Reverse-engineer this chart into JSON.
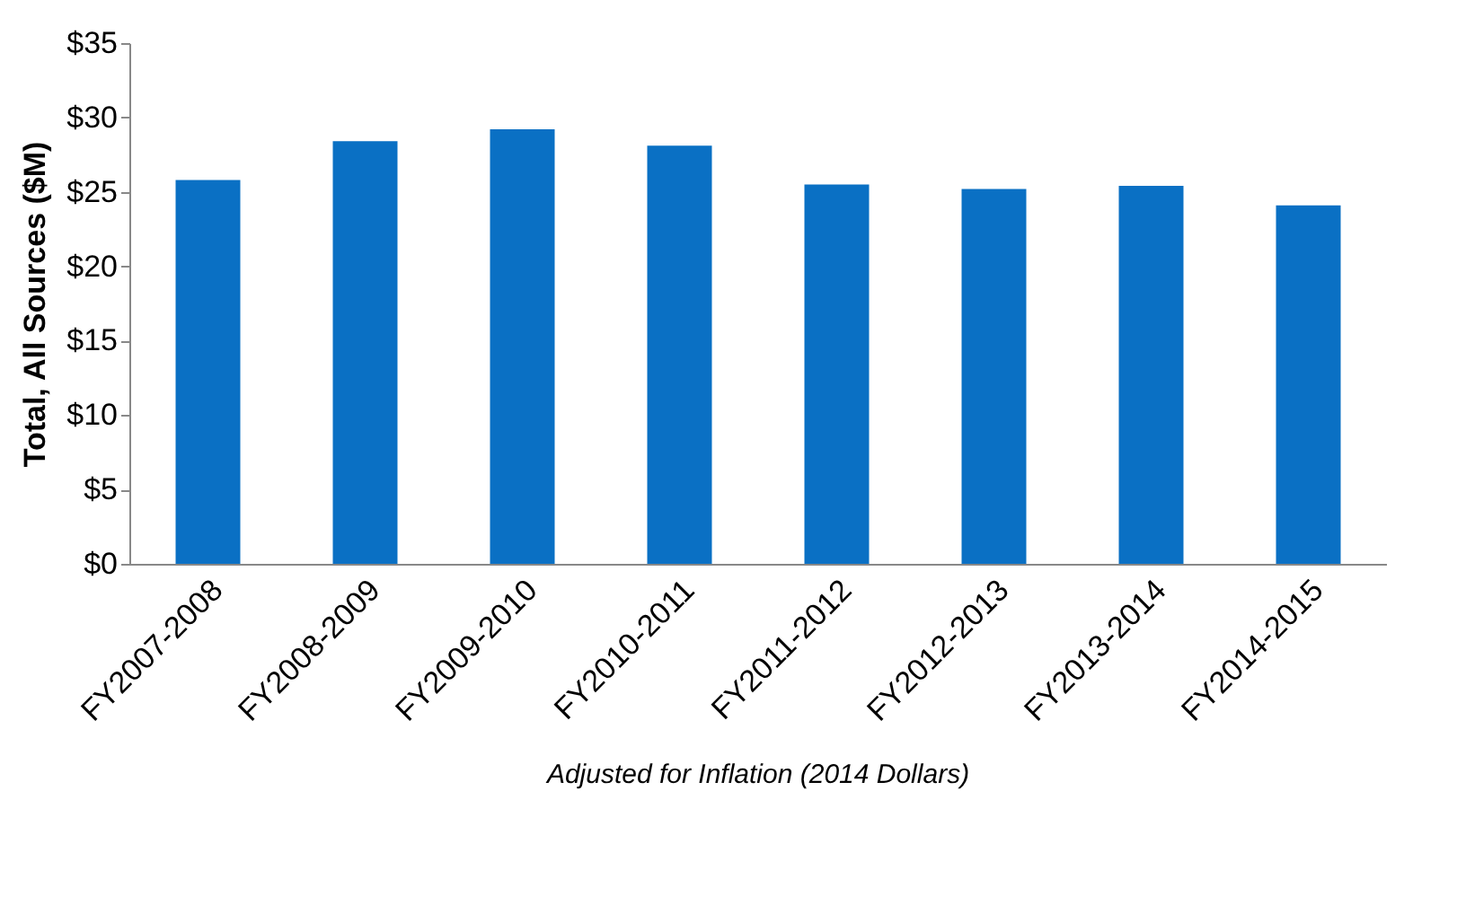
{
  "chart_data": {
    "type": "bar",
    "categories": [
      "FY2007-2008",
      "FY2008-2009",
      "FY2009-2010",
      "FY2010-2011",
      "FY2011-2012",
      "FY2012-2013",
      "FY2013-2014",
      "FY2014-2015"
    ],
    "values": [
      25.8,
      28.4,
      29.2,
      28.1,
      25.5,
      25.2,
      25.4,
      24.1
    ],
    "color": "#0a70c4",
    "ylabel": "Total, All Sources ($M)",
    "ylim": [
      0,
      35
    ],
    "yticks": [
      {
        "value": 0,
        "label": "$0"
      },
      {
        "value": 5,
        "label": "$5"
      },
      {
        "value": 10,
        "label": "$10"
      },
      {
        "value": 15,
        "label": "$15"
      },
      {
        "value": 20,
        "label": "$20"
      },
      {
        "value": 25,
        "label": "$25"
      },
      {
        "value": 30,
        "label": "$30"
      },
      {
        "value": 35,
        "label": "$35"
      }
    ],
    "grid": false,
    "annotations": [
      "Adjusted for Inflation (2014 Dollars)"
    ]
  }
}
